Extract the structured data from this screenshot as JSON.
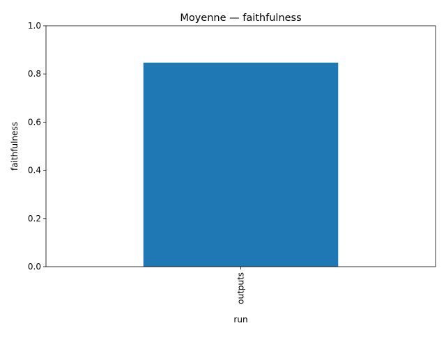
{
  "chart_data": {
    "type": "bar",
    "title": "Moyenne — faithfulness",
    "xlabel": "run",
    "ylabel": "faithfulness",
    "categories": [
      "outputs"
    ],
    "values": [
      0.847
    ],
    "ylim": [
      0,
      1.0
    ],
    "yticks": [
      "0.0",
      "0.2",
      "0.4",
      "0.6",
      "0.8",
      "1.0"
    ],
    "grid": false,
    "legend": "none",
    "bar_color": "#1f77b4"
  }
}
